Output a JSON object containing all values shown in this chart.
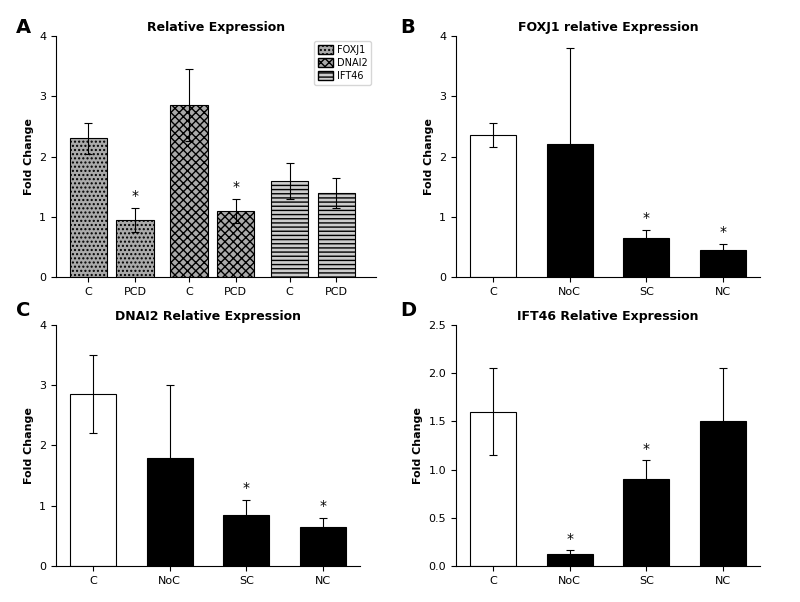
{
  "panel_A": {
    "title": "Relative Expression",
    "ylabel": "Fold Change",
    "ylim": [
      0,
      4
    ],
    "yticks": [
      0,
      1,
      2,
      3,
      4
    ],
    "categories": [
      "C",
      "PCD",
      "C",
      "PCD",
      "C",
      "PCD"
    ],
    "values": [
      2.3,
      0.95,
      2.85,
      1.1,
      1.6,
      1.4
    ],
    "errors": [
      0.25,
      0.2,
      0.6,
      0.2,
      0.3,
      0.25
    ],
    "star": [
      false,
      true,
      false,
      true,
      false,
      false
    ],
    "legend_labels": [
      "FOXJ1",
      "DNAI2",
      "IFT46"
    ]
  },
  "panel_B": {
    "title": "FOXJ1 relative Expression",
    "ylabel": "Fold Change",
    "ylim": [
      0,
      4
    ],
    "yticks": [
      0,
      1,
      2,
      3,
      4
    ],
    "categories": [
      "C",
      "NoC",
      "SC",
      "NC"
    ],
    "values": [
      2.35,
      2.2,
      0.65,
      0.45
    ],
    "errors": [
      0.2,
      1.6,
      0.13,
      0.1
    ],
    "star": [
      false,
      false,
      true,
      true
    ],
    "bar_colors": [
      "white",
      "black",
      "black",
      "black"
    ],
    "edgecolors": [
      "black",
      "black",
      "black",
      "black"
    ]
  },
  "panel_C": {
    "title": "DNAI2 Relative Expression",
    "ylabel": "Fold Change",
    "ylim": [
      0,
      4
    ],
    "yticks": [
      0,
      1,
      2,
      3,
      4
    ],
    "categories": [
      "C",
      "NoC",
      "SC",
      "NC"
    ],
    "values": [
      2.85,
      1.8,
      0.85,
      0.65
    ],
    "errors": [
      0.65,
      1.2,
      0.25,
      0.15
    ],
    "star": [
      false,
      false,
      true,
      true
    ],
    "bar_colors": [
      "white",
      "black",
      "black",
      "black"
    ],
    "edgecolors": [
      "black",
      "black",
      "black",
      "black"
    ]
  },
  "panel_D": {
    "title": "IFT46 Relative Expression",
    "ylabel": "Fold Change",
    "ylim": [
      0,
      2.5
    ],
    "yticks": [
      0.0,
      0.5,
      1.0,
      1.5,
      2.0,
      2.5
    ],
    "categories": [
      "C",
      "NoC",
      "SC",
      "NC"
    ],
    "values": [
      1.6,
      0.12,
      0.9,
      1.5
    ],
    "errors": [
      0.45,
      0.05,
      0.2,
      0.55
    ],
    "star": [
      false,
      true,
      true,
      false
    ],
    "bar_colors": [
      "white",
      "black",
      "black",
      "black"
    ],
    "edgecolors": [
      "black",
      "black",
      "black",
      "black"
    ]
  },
  "background_color": "#ffffff"
}
